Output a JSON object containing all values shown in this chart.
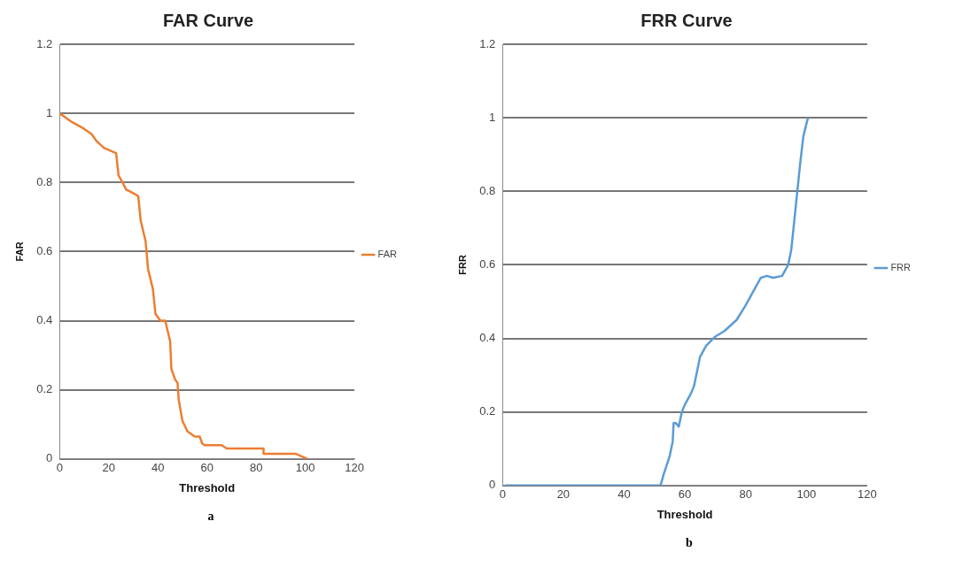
{
  "chart_data": [
    {
      "type": "line",
      "title": "FAR Curve",
      "xlabel": "Threshold",
      "ylabel": "FAR",
      "annotations": [
        "a"
      ],
      "legend": "right",
      "grid": "y",
      "marker": "none",
      "line_style": "solid",
      "xlim": [
        0,
        120
      ],
      "xticks": [
        0,
        20,
        40,
        60,
        80,
        100,
        120
      ],
      "ylim": [
        0,
        1.2
      ],
      "yticks": [
        0,
        0.2,
        0.4,
        0.6,
        0.8,
        1,
        1.2
      ],
      "series": [
        {
          "name": "FAR",
          "color": "#ed7d31",
          "x": [
            0,
            5,
            10,
            13,
            15,
            18,
            23,
            24,
            26,
            27,
            31,
            32,
            33,
            35,
            36,
            38,
            39,
            41,
            43,
            45,
            45.5,
            47,
            48,
            48.5,
            50,
            52,
            54,
            55,
            57,
            58,
            59,
            66,
            68,
            83,
            83,
            96,
            101
          ],
          "values": [
            1,
            0.975,
            0.955,
            0.94,
            0.92,
            0.9,
            0.885,
            0.82,
            0.795,
            0.78,
            0.765,
            0.76,
            0.69,
            0.63,
            0.55,
            0.49,
            0.42,
            0.4,
            0.4,
            0.34,
            0.26,
            0.23,
            0.22,
            0.17,
            0.11,
            0.08,
            0.07,
            0.065,
            0.065,
            0.045,
            0.04,
            0.04,
            0.03,
            0.03,
            0.015,
            0.015,
            0
          ]
        }
      ]
    },
    {
      "type": "line",
      "title": "FRR Curve",
      "xlabel": "Threshold",
      "ylabel": "FRR",
      "annotations": [
        "b"
      ],
      "legend": "right",
      "grid": "y",
      "marker": "none",
      "line_style": "solid",
      "xlim": [
        0,
        120
      ],
      "xticks": [
        0,
        20,
        40,
        60,
        80,
        100,
        120
      ],
      "ylim": [
        0,
        1.2
      ],
      "yticks": [
        0,
        0.2,
        0.4,
        0.6,
        0.8,
        1,
        1.2
      ],
      "series": [
        {
          "name": "FRR",
          "color": "#5b9bd5",
          "x": [
            1,
            52,
            53,
            55,
            56,
            56.3,
            57,
            58,
            59,
            60,
            62,
            63,
            64,
            65,
            67,
            70,
            73,
            77,
            80,
            83,
            85,
            87,
            89,
            92,
            94,
            95,
            96,
            97,
            98,
            99,
            100.5
          ],
          "values": [
            0,
            0,
            0.03,
            0.08,
            0.12,
            0.17,
            0.17,
            0.16,
            0.2,
            0.22,
            0.25,
            0.27,
            0.31,
            0.35,
            0.38,
            0.405,
            0.42,
            0.45,
            0.49,
            0.535,
            0.565,
            0.57,
            0.565,
            0.57,
            0.6,
            0.64,
            0.72,
            0.8,
            0.88,
            0.95,
            1
          ]
        }
      ]
    }
  ]
}
